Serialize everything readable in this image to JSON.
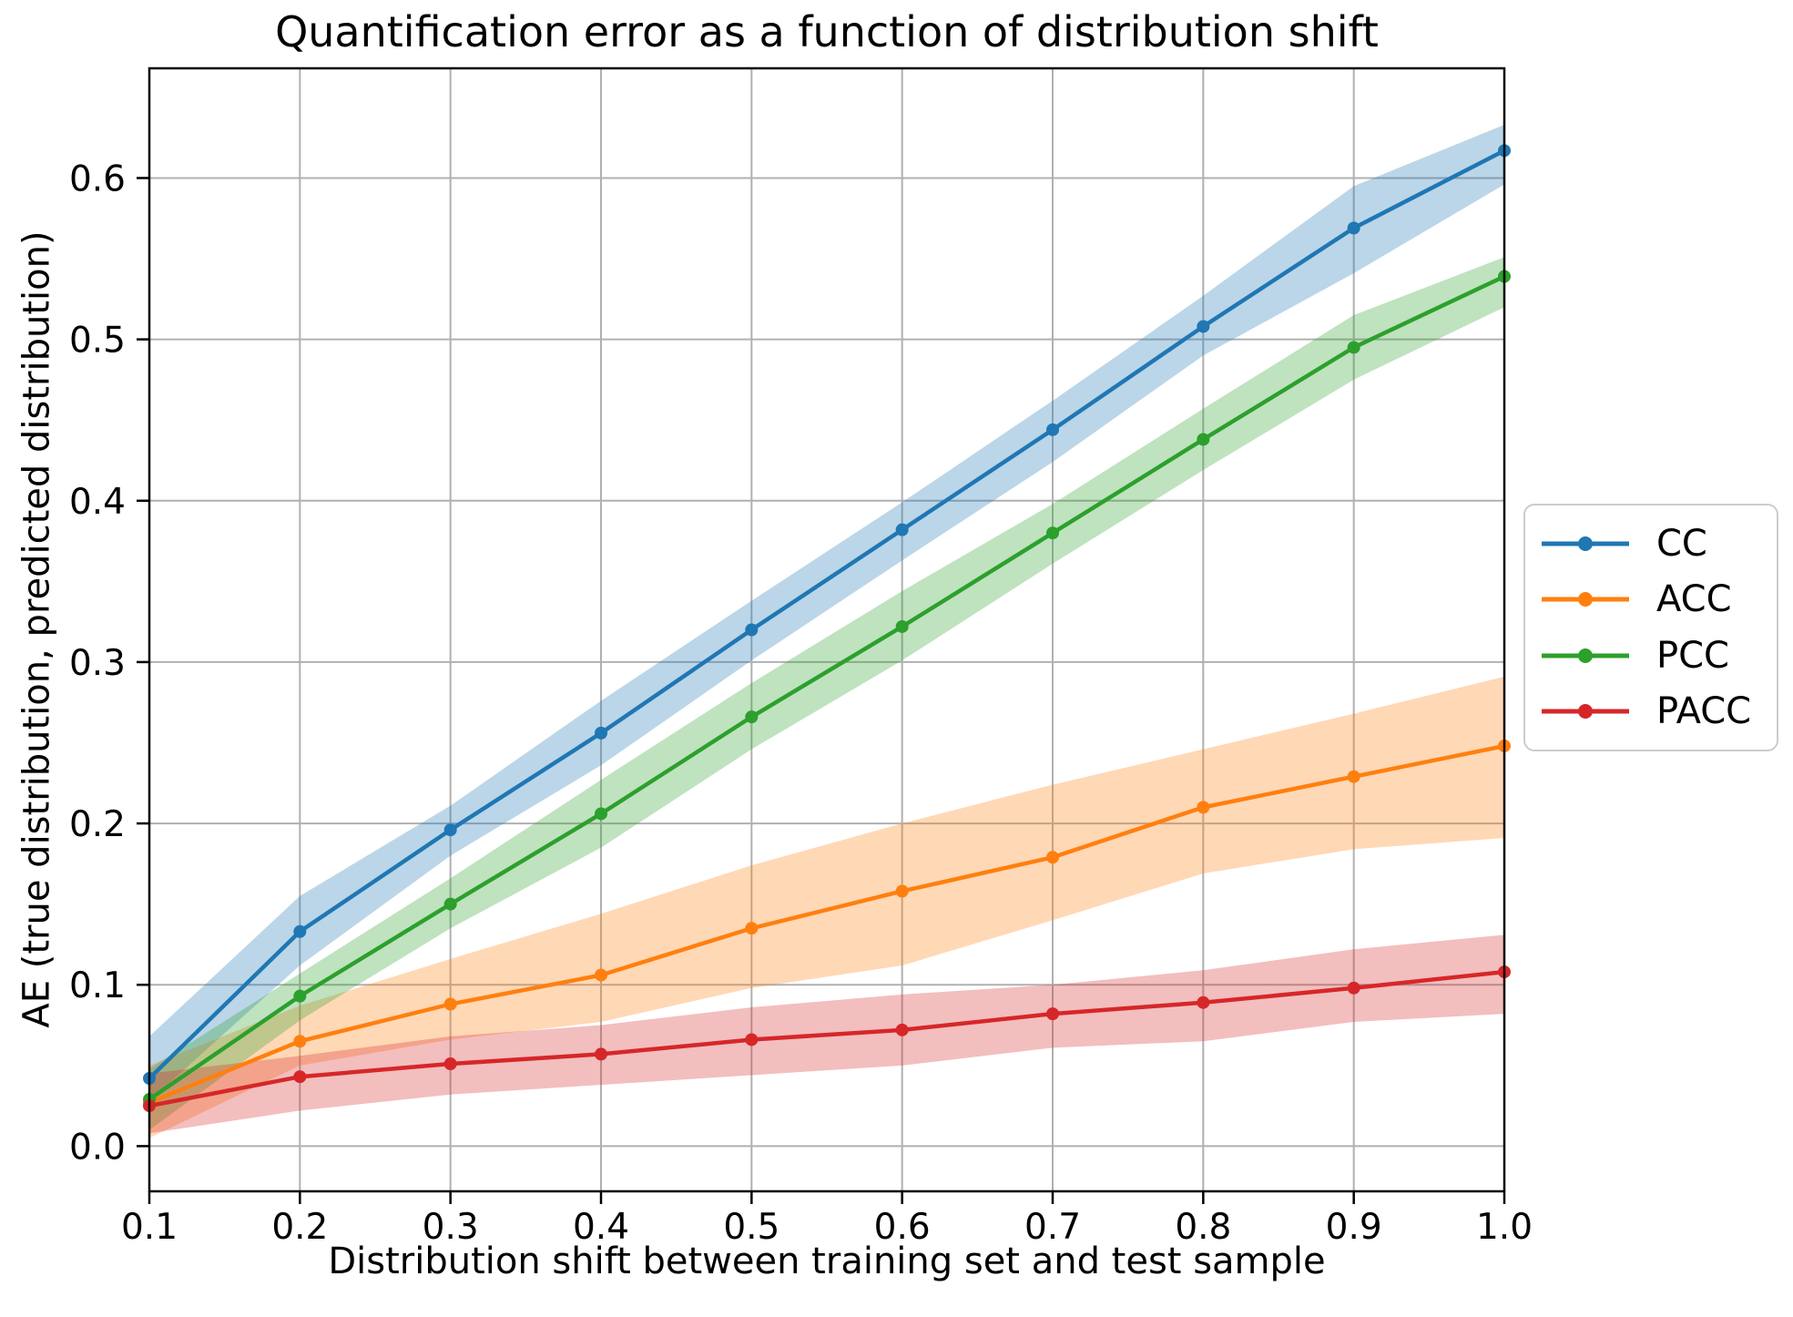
{
  "chart_data": {
    "type": "line",
    "title": "Quantification error as a function of distribution shift",
    "xlabel": "Distribution shift between training set and test sample",
    "ylabel": "AE (true distribution, predicted distribution)",
    "x": [
      0.1,
      0.2,
      0.3,
      0.4,
      0.5,
      0.6,
      0.7,
      0.8,
      0.9,
      1.0
    ],
    "xtick_labels": [
      "0.1",
      "0.2",
      "0.3",
      "0.4",
      "0.5",
      "0.6",
      "0.7",
      "0.8",
      "0.9",
      "1.0"
    ],
    "ytick_values": [
      0.0,
      0.1,
      0.2,
      0.3,
      0.4,
      0.5,
      0.6
    ],
    "ytick_labels": [
      "0.0",
      "0.1",
      "0.2",
      "0.3",
      "0.4",
      "0.5",
      "0.6"
    ],
    "xlim": [
      0.1,
      1.0
    ],
    "ylim": [
      -0.028,
      0.668
    ],
    "grid": true,
    "grid_color": "#b0b0b0",
    "spine_color": "#000000",
    "band_opacity": 0.3,
    "legend_position": "outside center right",
    "series": [
      {
        "name": "CC",
        "color": "#1f77b4",
        "values": [
          0.042,
          0.133,
          0.196,
          0.256,
          0.32,
          0.382,
          0.444,
          0.508,
          0.569,
          0.617
        ],
        "band_lower": [
          0.028,
          0.112,
          0.18,
          0.236,
          0.301,
          0.363,
          0.424,
          0.49,
          0.541,
          0.596
        ],
        "band_upper": [
          0.068,
          0.155,
          0.211,
          0.276,
          0.338,
          0.399,
          0.462,
          0.527,
          0.595,
          0.633
        ]
      },
      {
        "name": "ACC",
        "color": "#ff7f0e",
        "values": [
          0.027,
          0.065,
          0.088,
          0.106,
          0.135,
          0.158,
          0.179,
          0.21,
          0.229,
          0.248
        ],
        "band_lower": [
          0.005,
          0.05,
          0.066,
          0.077,
          0.098,
          0.112,
          0.14,
          0.169,
          0.184,
          0.191
        ],
        "band_upper": [
          0.05,
          0.087,
          0.116,
          0.144,
          0.174,
          0.2,
          0.224,
          0.246,
          0.268,
          0.291
        ]
      },
      {
        "name": "PCC",
        "color": "#2ca02c",
        "values": [
          0.029,
          0.093,
          0.15,
          0.206,
          0.266,
          0.322,
          0.38,
          0.438,
          0.495,
          0.539
        ],
        "band_lower": [
          0.01,
          0.078,
          0.135,
          0.185,
          0.246,
          0.301,
          0.361,
          0.419,
          0.475,
          0.52
        ],
        "band_upper": [
          0.048,
          0.107,
          0.166,
          0.227,
          0.287,
          0.344,
          0.398,
          0.457,
          0.515,
          0.551
        ]
      },
      {
        "name": "PACC",
        "color": "#d62728",
        "values": [
          0.025,
          0.043,
          0.051,
          0.057,
          0.066,
          0.072,
          0.082,
          0.089,
          0.098,
          0.108
        ],
        "band_lower": [
          0.008,
          0.022,
          0.032,
          0.038,
          0.044,
          0.05,
          0.061,
          0.065,
          0.077,
          0.082
        ],
        "band_upper": [
          0.045,
          0.056,
          0.068,
          0.075,
          0.086,
          0.094,
          0.1,
          0.109,
          0.122,
          0.131
        ]
      }
    ]
  }
}
